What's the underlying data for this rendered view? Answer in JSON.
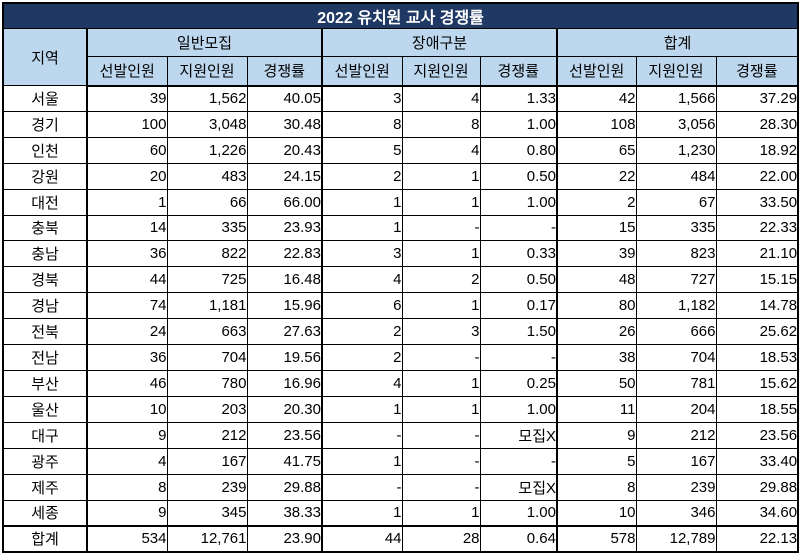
{
  "table": {
    "title": "2022 유치원 교사 경쟁률",
    "region_header": "지역",
    "groups": [
      {
        "label": "일반모집",
        "sub": [
          "선발인원",
          "지원인원",
          "경쟁률"
        ]
      },
      {
        "label": "장애구분",
        "sub": [
          "선발인원",
          "지원인원",
          "경쟁률"
        ]
      },
      {
        "label": "합계",
        "sub": [
          "선발인원",
          "지원인원",
          "경쟁률"
        ]
      }
    ],
    "rows": [
      {
        "region": "서울",
        "values": [
          "39",
          "1,562",
          "40.05",
          "3",
          "4",
          "1.33",
          "42",
          "1,566",
          "37.29"
        ]
      },
      {
        "region": "경기",
        "values": [
          "100",
          "3,048",
          "30.48",
          "8",
          "8",
          "1.00",
          "108",
          "3,056",
          "28.30"
        ]
      },
      {
        "region": "인천",
        "values": [
          "60",
          "1,226",
          "20.43",
          "5",
          "4",
          "0.80",
          "65",
          "1,230",
          "18.92"
        ]
      },
      {
        "region": "강원",
        "values": [
          "20",
          "483",
          "24.15",
          "2",
          "1",
          "0.50",
          "22",
          "484",
          "22.00"
        ]
      },
      {
        "region": "대전",
        "values": [
          "1",
          "66",
          "66.00",
          "1",
          "1",
          "1.00",
          "2",
          "67",
          "33.50"
        ]
      },
      {
        "region": "충북",
        "values": [
          "14",
          "335",
          "23.93",
          "1",
          "-",
          "-",
          "15",
          "335",
          "22.33"
        ]
      },
      {
        "region": "충남",
        "values": [
          "36",
          "822",
          "22.83",
          "3",
          "1",
          "0.33",
          "39",
          "823",
          "21.10"
        ]
      },
      {
        "region": "경북",
        "values": [
          "44",
          "725",
          "16.48",
          "4",
          "2",
          "0.50",
          "48",
          "727",
          "15.15"
        ]
      },
      {
        "region": "경남",
        "values": [
          "74",
          "1,181",
          "15.96",
          "6",
          "1",
          "0.17",
          "80",
          "1,182",
          "14.78"
        ]
      },
      {
        "region": "전북",
        "values": [
          "24",
          "663",
          "27.63",
          "2",
          "3",
          "1.50",
          "26",
          "666",
          "25.62"
        ]
      },
      {
        "region": "전남",
        "values": [
          "36",
          "704",
          "19.56",
          "2",
          "-",
          "-",
          "38",
          "704",
          "18.53"
        ]
      },
      {
        "region": "부산",
        "values": [
          "46",
          "780",
          "16.96",
          "4",
          "1",
          "0.25",
          "50",
          "781",
          "15.62"
        ]
      },
      {
        "region": "울산",
        "values": [
          "10",
          "203",
          "20.30",
          "1",
          "1",
          "1.00",
          "11",
          "204",
          "18.55"
        ]
      },
      {
        "region": "대구",
        "values": [
          "9",
          "212",
          "23.56",
          "-",
          "-",
          "모집X",
          "9",
          "212",
          "23.56"
        ]
      },
      {
        "region": "광주",
        "values": [
          "4",
          "167",
          "41.75",
          "1",
          "-",
          "-",
          "5",
          "167",
          "33.40"
        ]
      },
      {
        "region": "제주",
        "values": [
          "8",
          "239",
          "29.88",
          "-",
          "-",
          "모집X",
          "8",
          "239",
          "29.88"
        ]
      },
      {
        "region": "세종",
        "values": [
          "9",
          "345",
          "38.33",
          "1",
          "1",
          "1.00",
          "10",
          "346",
          "34.60"
        ]
      }
    ],
    "total": {
      "region": "합계",
      "values": [
        "534",
        "12,761",
        "23.90",
        "44",
        "28",
        "0.64",
        "578",
        "12,789",
        "22.13"
      ]
    },
    "colors": {
      "title_bg": "#1F3864",
      "title_text": "#FFFFFF",
      "header_bg": "#BDD7EE",
      "border": "#000000"
    }
  }
}
